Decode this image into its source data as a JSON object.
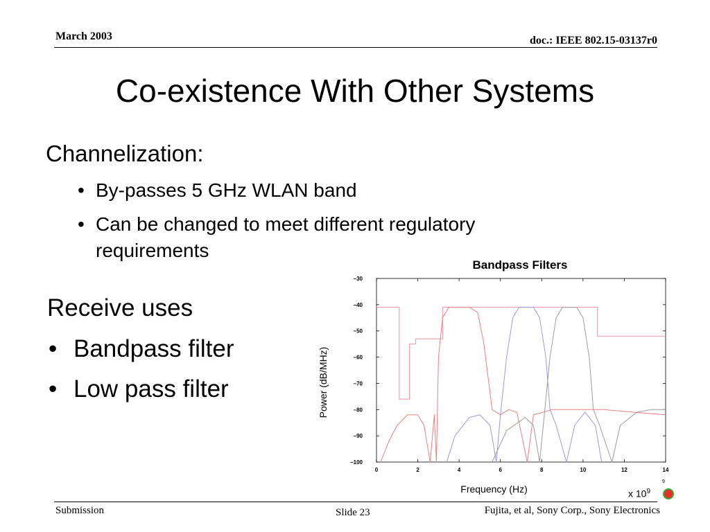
{
  "header": {
    "date": "March 2003",
    "doc": "doc.: IEEE 802.15-03137r0"
  },
  "title": "Co-existence With Other Systems",
  "section1": {
    "heading": "Channelization:",
    "bullets": [
      "By-passes 5 GHz WLAN band",
      "Can be changed to meet different  regulatory requirements"
    ]
  },
  "section2": {
    "heading": "Receive uses",
    "bullets": [
      "Bandpass filter",
      "Low pass filter"
    ]
  },
  "bullet_symbol": "•",
  "chart_data": {
    "type": "line",
    "title": "Bandpass Filters",
    "xlabel": "Frequency (Hz)",
    "ylabel": "Power (dB/MHz)",
    "x_multiplier": {
      "base": "x 10",
      "exponent": "9"
    },
    "corner_label": "9",
    "xlim": [
      0,
      14
    ],
    "ylim": [
      -100,
      -30
    ],
    "xticks": [
      0,
      2,
      4,
      6,
      8,
      10,
      12,
      14
    ],
    "yticks": [
      -30,
      -40,
      -50,
      -60,
      -70,
      -80,
      -90,
      -100
    ],
    "grid": false,
    "series": [
      {
        "color": "#e98f9f",
        "style": "step",
        "points": [
          [
            0,
            -41
          ],
          [
            1.1,
            -41
          ],
          [
            1.1,
            -76
          ],
          [
            1.6,
            -76
          ],
          [
            1.6,
            -55
          ],
          [
            1.9,
            -55
          ],
          [
            1.9,
            -53
          ],
          [
            3.2,
            -53
          ],
          [
            3.2,
            -41
          ],
          [
            10.7,
            -41
          ],
          [
            10.7,
            -52
          ],
          [
            14,
            -52
          ]
        ]
      },
      {
        "color": "#e98080",
        "style": "filter",
        "points": [
          [
            0.2,
            -100
          ],
          [
            0.6,
            -92
          ],
          [
            1.0,
            -86
          ],
          [
            1.5,
            -82
          ],
          [
            2.0,
            -82
          ],
          [
            2.3,
            -86
          ],
          [
            2.6,
            -100
          ],
          [
            2.8,
            -82
          ],
          [
            2.9,
            -100
          ],
          [
            3.0,
            -60
          ],
          [
            3.2,
            -45
          ],
          [
            3.5,
            -41
          ],
          [
            4.5,
            -41
          ],
          [
            4.9,
            -43
          ],
          [
            5.2,
            -55
          ],
          [
            5.6,
            -80
          ],
          [
            6.0,
            -82
          ],
          [
            6.4,
            -80
          ],
          [
            6.8,
            -81
          ],
          [
            7.3,
            -100
          ],
          [
            7.6,
            -82
          ],
          [
            8.5,
            -80
          ],
          [
            9.5,
            -80
          ],
          [
            11,
            -80
          ],
          [
            12.5,
            -81
          ],
          [
            14,
            -82
          ]
        ]
      },
      {
        "color": "#9a9ae0",
        "style": "filter",
        "points": [
          [
            3.4,
            -100
          ],
          [
            3.8,
            -90
          ],
          [
            4.5,
            -83
          ],
          [
            5.0,
            -82
          ],
          [
            5.5,
            -86
          ],
          [
            5.8,
            -100
          ],
          [
            6.0,
            -82
          ],
          [
            6.3,
            -60
          ],
          [
            6.6,
            -45
          ],
          [
            6.9,
            -41
          ],
          [
            7.6,
            -41
          ],
          [
            7.9,
            -45
          ],
          [
            8.2,
            -60
          ],
          [
            8.4,
            -80
          ],
          [
            8.7,
            -86
          ],
          [
            9.2,
            -100
          ],
          [
            9.6,
            -86
          ],
          [
            10.1,
            -81
          ],
          [
            10.6,
            -86
          ],
          [
            10.9,
            -100
          ]
        ]
      },
      {
        "color": "#9a9a9a",
        "style": "filter",
        "points": [
          [
            5.6,
            -100
          ],
          [
            6.3,
            -88
          ],
          [
            7.2,
            -83
          ],
          [
            7.6,
            -86
          ],
          [
            7.9,
            -100
          ],
          [
            8.1,
            -84
          ],
          [
            8.4,
            -60
          ],
          [
            8.7,
            -45
          ],
          [
            9.0,
            -41
          ],
          [
            9.7,
            -41
          ],
          [
            10.0,
            -45
          ],
          [
            10.3,
            -60
          ],
          [
            10.5,
            -80
          ],
          [
            10.8,
            -86
          ],
          [
            11.4,
            -100
          ],
          [
            11.8,
            -86
          ],
          [
            12.6,
            -81
          ],
          [
            13.3,
            -80
          ],
          [
            14,
            -80
          ]
        ]
      }
    ]
  },
  "footer": {
    "left": "Submission",
    "slide": "Slide 23",
    "right": "Fujita, et al, Sony Corp., Sony Electronics"
  }
}
